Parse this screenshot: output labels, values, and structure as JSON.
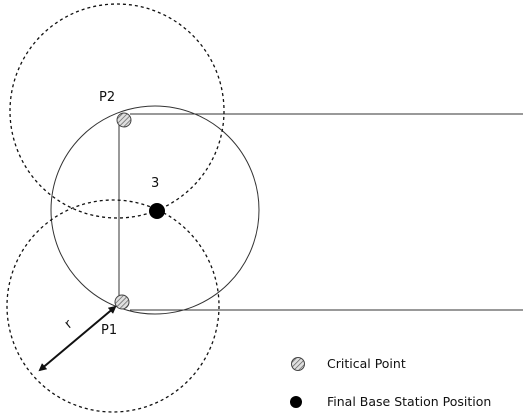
{
  "labels": {
    "p2": "P2",
    "p1": "P1",
    "three": "3",
    "r": "r"
  },
  "legend": {
    "critical_point": "Critical Point",
    "final_base_station": "Final Base Station Position"
  },
  "colors": {
    "stroke": "#111111",
    "fill_dot": "#000000",
    "hatch_fill": "#d9d9d9",
    "hatch_line": "#555555"
  }
}
